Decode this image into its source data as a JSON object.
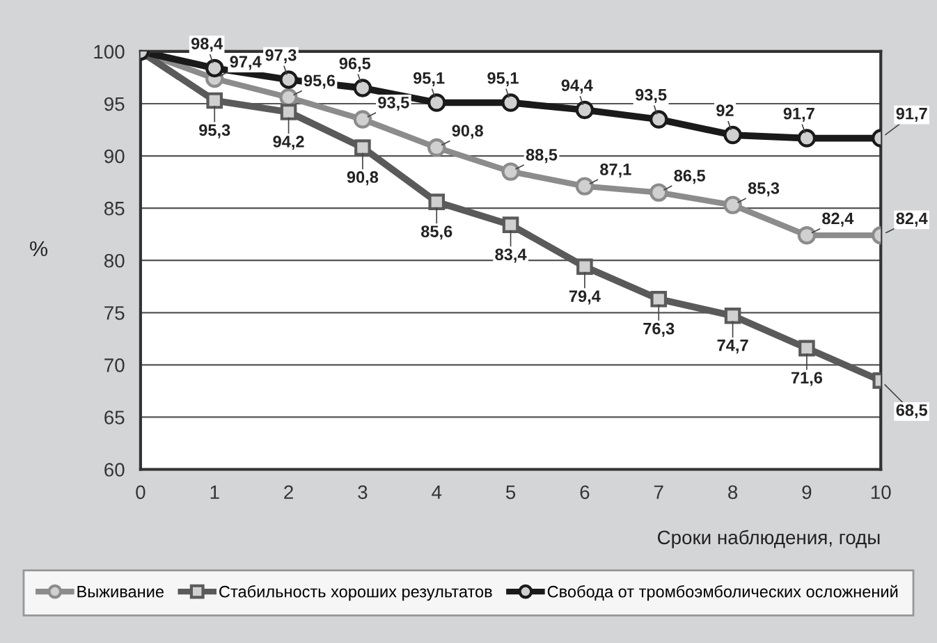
{
  "chart_data": {
    "type": "line",
    "xlabel": "Сроки наблюдения, годы",
    "ylabel": "%",
    "x": [
      0,
      1,
      2,
      3,
      4,
      5,
      6,
      7,
      8,
      9,
      10
    ],
    "xlim": [
      0,
      10
    ],
    "xticks": [
      0,
      1,
      2,
      3,
      4,
      5,
      6,
      7,
      8,
      9,
      10
    ],
    "ylim": [
      60,
      100
    ],
    "yticks": [
      60,
      65,
      70,
      75,
      80,
      85,
      90,
      95,
      100
    ],
    "grid": "y",
    "legend": "bottom",
    "series": [
      {
        "name": "Выживание",
        "color": "#8c8c8c",
        "marker": "circle",
        "values": [
          100,
          97.4,
          95.6,
          93.5,
          90.8,
          88.5,
          87.1,
          86.5,
          85.3,
          82.4,
          82.4
        ],
        "value_labels": [
          null,
          "97,4",
          "95,6",
          "93,5",
          "90,8",
          "88,5",
          "87,1",
          "86,5",
          "85,3",
          "82,4",
          "82,4"
        ]
      },
      {
        "name": "Стабильность хороших результатов",
        "color": "#5a5a5a",
        "marker": "square",
        "values": [
          100,
          95.3,
          94.2,
          90.8,
          85.6,
          83.4,
          79.4,
          76.3,
          74.7,
          71.6,
          68.5
        ],
        "value_labels": [
          null,
          "95,3",
          "94,2",
          "90,8",
          "85,6",
          "83,4",
          "79,4",
          "76,3",
          "74,7",
          "71,6",
          "68,5"
        ]
      },
      {
        "name": "Свобода от тромбоэмболических осложнений",
        "color": "#1a1a1a",
        "marker": "circle",
        "values": [
          100,
          98.4,
          97.3,
          96.5,
          95.1,
          95.1,
          94.4,
          93.5,
          92,
          91.7,
          91.7
        ],
        "value_labels": [
          null,
          "98,4",
          "97,3",
          "96,5",
          "95,1",
          "95,1",
          "94,4",
          "93,5",
          "92",
          "91,7",
          "91,7"
        ]
      }
    ]
  }
}
